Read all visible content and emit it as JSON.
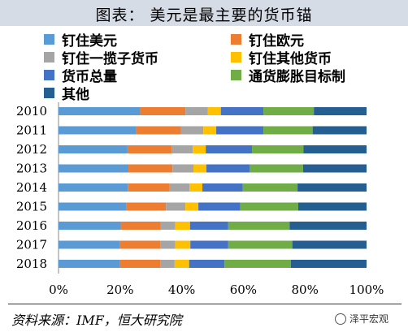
{
  "header": {
    "title": "图表： 美元是最主要的货币锚"
  },
  "chart_data": {
    "type": "bar",
    "orientation": "horizontal",
    "stacked": "percent",
    "categories": [
      "2010",
      "2011",
      "2012",
      "2013",
      "2014",
      "2015",
      "2016",
      "2017",
      "2018"
    ],
    "series": [
      {
        "name": "钉住美元",
        "color": "#5b9bd5",
        "values": [
          26.5,
          25.3,
          22.4,
          22.7,
          22.5,
          22.0,
          20.2,
          20.0,
          19.9
        ]
      },
      {
        "name": "钉住欧元",
        "color": "#ed7d31",
        "values": [
          14.7,
          14.4,
          14.3,
          14.3,
          13.6,
          12.9,
          12.9,
          13.0,
          13.1
        ]
      },
      {
        "name": "钉住一揽子货币",
        "color": "#a5a5a5",
        "values": [
          7.3,
          7.3,
          6.9,
          6.8,
          6.4,
          6.3,
          4.8,
          4.9,
          4.7
        ]
      },
      {
        "name": "钉住其他货币",
        "color": "#ffc000",
        "values": [
          4.2,
          4.2,
          4.2,
          4.2,
          4.2,
          4.2,
          4.8,
          4.9,
          4.7
        ]
      },
      {
        "name": "货币总量",
        "color": "#4472c4",
        "values": [
          13.8,
          15.3,
          15.0,
          14.0,
          13.1,
          13.6,
          12.4,
          12.3,
          11.5
        ]
      },
      {
        "name": "通货膨胀目标制",
        "color": "#70ad47",
        "values": [
          16.4,
          16.0,
          16.7,
          17.4,
          17.8,
          18.8,
          19.9,
          20.8,
          21.5
        ]
      },
      {
        "name": "其他",
        "color": "#255e91",
        "values": [
          17.1,
          17.5,
          20.5,
          20.6,
          22.4,
          22.2,
          25.0,
          24.1,
          24.6
        ]
      }
    ],
    "x_ticks": [
      "0%",
      "20%",
      "40%",
      "60%",
      "80%",
      "100%"
    ],
    "xlim": [
      0,
      100
    ],
    "grid": false,
    "legend_position": "top"
  },
  "footer": {
    "source": "资料来源：IMF，恒大研究院",
    "watermark": "泽平宏观"
  }
}
